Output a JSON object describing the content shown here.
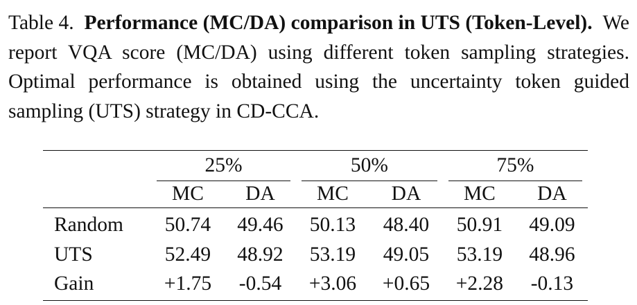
{
  "caption": {
    "table_number": "Table 4.",
    "title": "Performance (MC/DA) comparison in UTS (Token-Level).",
    "body": "We report VQA score (MC/DA) using different token sampling strategies. Optimal performance is obtained using the uncertainty token guided sampling (UTS) strategy in CD-CCA."
  },
  "table": {
    "groups": [
      "25%",
      "50%",
      "75%"
    ],
    "subheaders": [
      "MC",
      "DA",
      "MC",
      "DA",
      "MC",
      "DA"
    ],
    "rows": [
      {
        "label": "Random",
        "values": [
          "50.74",
          "49.46",
          "50.13",
          "48.40",
          "50.91",
          "49.09"
        ]
      },
      {
        "label": "UTS",
        "values": [
          "52.49",
          "48.92",
          "53.19",
          "49.05",
          "53.19",
          "48.96"
        ]
      },
      {
        "label": "Gain",
        "values": [
          "+1.75",
          "-0.54",
          "+3.06",
          "+0.65",
          "+2.28",
          "-0.13"
        ]
      }
    ]
  }
}
